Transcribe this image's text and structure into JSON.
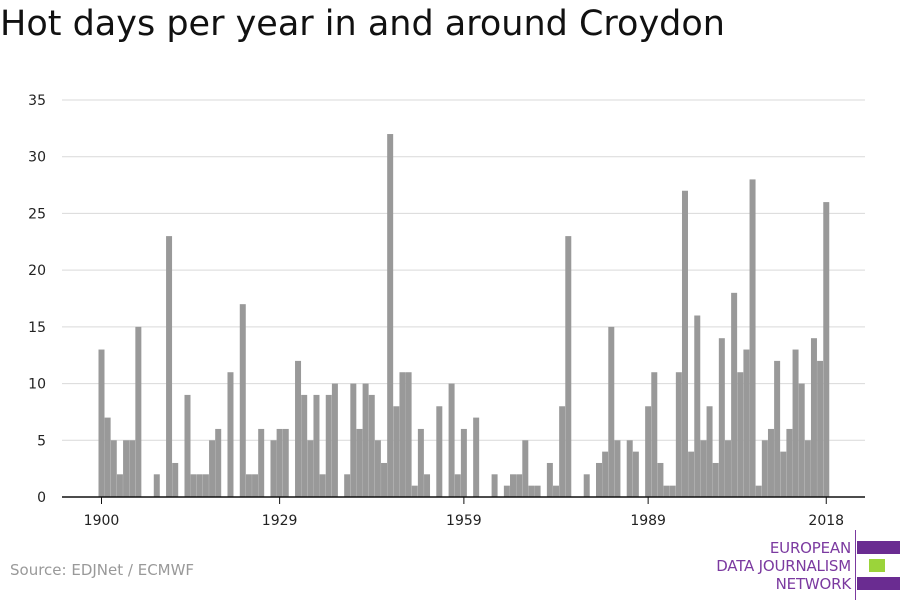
{
  "title": "Hot days per year in and around Croydon",
  "source": "Source: EDJNet / ECMWF",
  "logo": {
    "lines": [
      "EUROPEAN",
      "DATA JOURNALISM",
      "NETWORK"
    ],
    "colors": [
      "#6a2c91",
      "#9bd43a",
      "#6a2c91"
    ]
  },
  "chart_data": {
    "type": "bar",
    "title": "Hot days per year in and around Croydon",
    "xlabel": "",
    "ylabel": "",
    "color": "#999999",
    "grid": true,
    "ylim": [
      0,
      35
    ],
    "yticks": [
      0,
      5,
      10,
      15,
      20,
      25,
      30,
      35
    ],
    "xticks": [
      1900,
      1929,
      1959,
      1989,
      2018
    ],
    "x": [
      1900,
      1901,
      1902,
      1903,
      1904,
      1905,
      1906,
      1907,
      1908,
      1909,
      1910,
      1911,
      1912,
      1913,
      1914,
      1915,
      1916,
      1917,
      1918,
      1919,
      1920,
      1921,
      1922,
      1923,
      1924,
      1925,
      1926,
      1927,
      1928,
      1929,
      1930,
      1931,
      1932,
      1933,
      1934,
      1935,
      1936,
      1937,
      1938,
      1939,
      1940,
      1941,
      1942,
      1943,
      1944,
      1945,
      1946,
      1947,
      1948,
      1949,
      1950,
      1951,
      1952,
      1953,
      1954,
      1955,
      1956,
      1957,
      1958,
      1959,
      1960,
      1961,
      1962,
      1963,
      1964,
      1965,
      1966,
      1967,
      1968,
      1969,
      1970,
      1971,
      1972,
      1973,
      1974,
      1975,
      1976,
      1977,
      1978,
      1979,
      1980,
      1981,
      1982,
      1983,
      1984,
      1985,
      1986,
      1987,
      1988,
      1989,
      1990,
      1991,
      1992,
      1993,
      1994,
      1995,
      1996,
      1997,
      1998,
      1999,
      2000,
      2001,
      2002,
      2003,
      2004,
      2005,
      2006,
      2007,
      2008,
      2009,
      2010,
      2011,
      2012,
      2013,
      2014,
      2015,
      2016,
      2017,
      2018
    ],
    "values": [
      13,
      7,
      5,
      2,
      5,
      5,
      15,
      0,
      0,
      2,
      0,
      23,
      3,
      0,
      9,
      2,
      2,
      2,
      5,
      6,
      0,
      11,
      0,
      17,
      2,
      2,
      6,
      0,
      5,
      6,
      6,
      0,
      12,
      9,
      5,
      9,
      2,
      9,
      10,
      0,
      2,
      10,
      6,
      10,
      9,
      5,
      3,
      32,
      8,
      11,
      11,
      1,
      6,
      2,
      0,
      8,
      0,
      10,
      2,
      6,
      0,
      7,
      0,
      0,
      2,
      0,
      1,
      2,
      2,
      5,
      1,
      1,
      0,
      3,
      1,
      8,
      23,
      0,
      0,
      2,
      0,
      3,
      4,
      15,
      5,
      0,
      5,
      4,
      0,
      8,
      11,
      3,
      1,
      1,
      11,
      27,
      4,
      16,
      5,
      8,
      3,
      14,
      5,
      18,
      11,
      13,
      28,
      1,
      5,
      6,
      12,
      4,
      6,
      13,
      10,
      5,
      14,
      12,
      26
    ]
  }
}
